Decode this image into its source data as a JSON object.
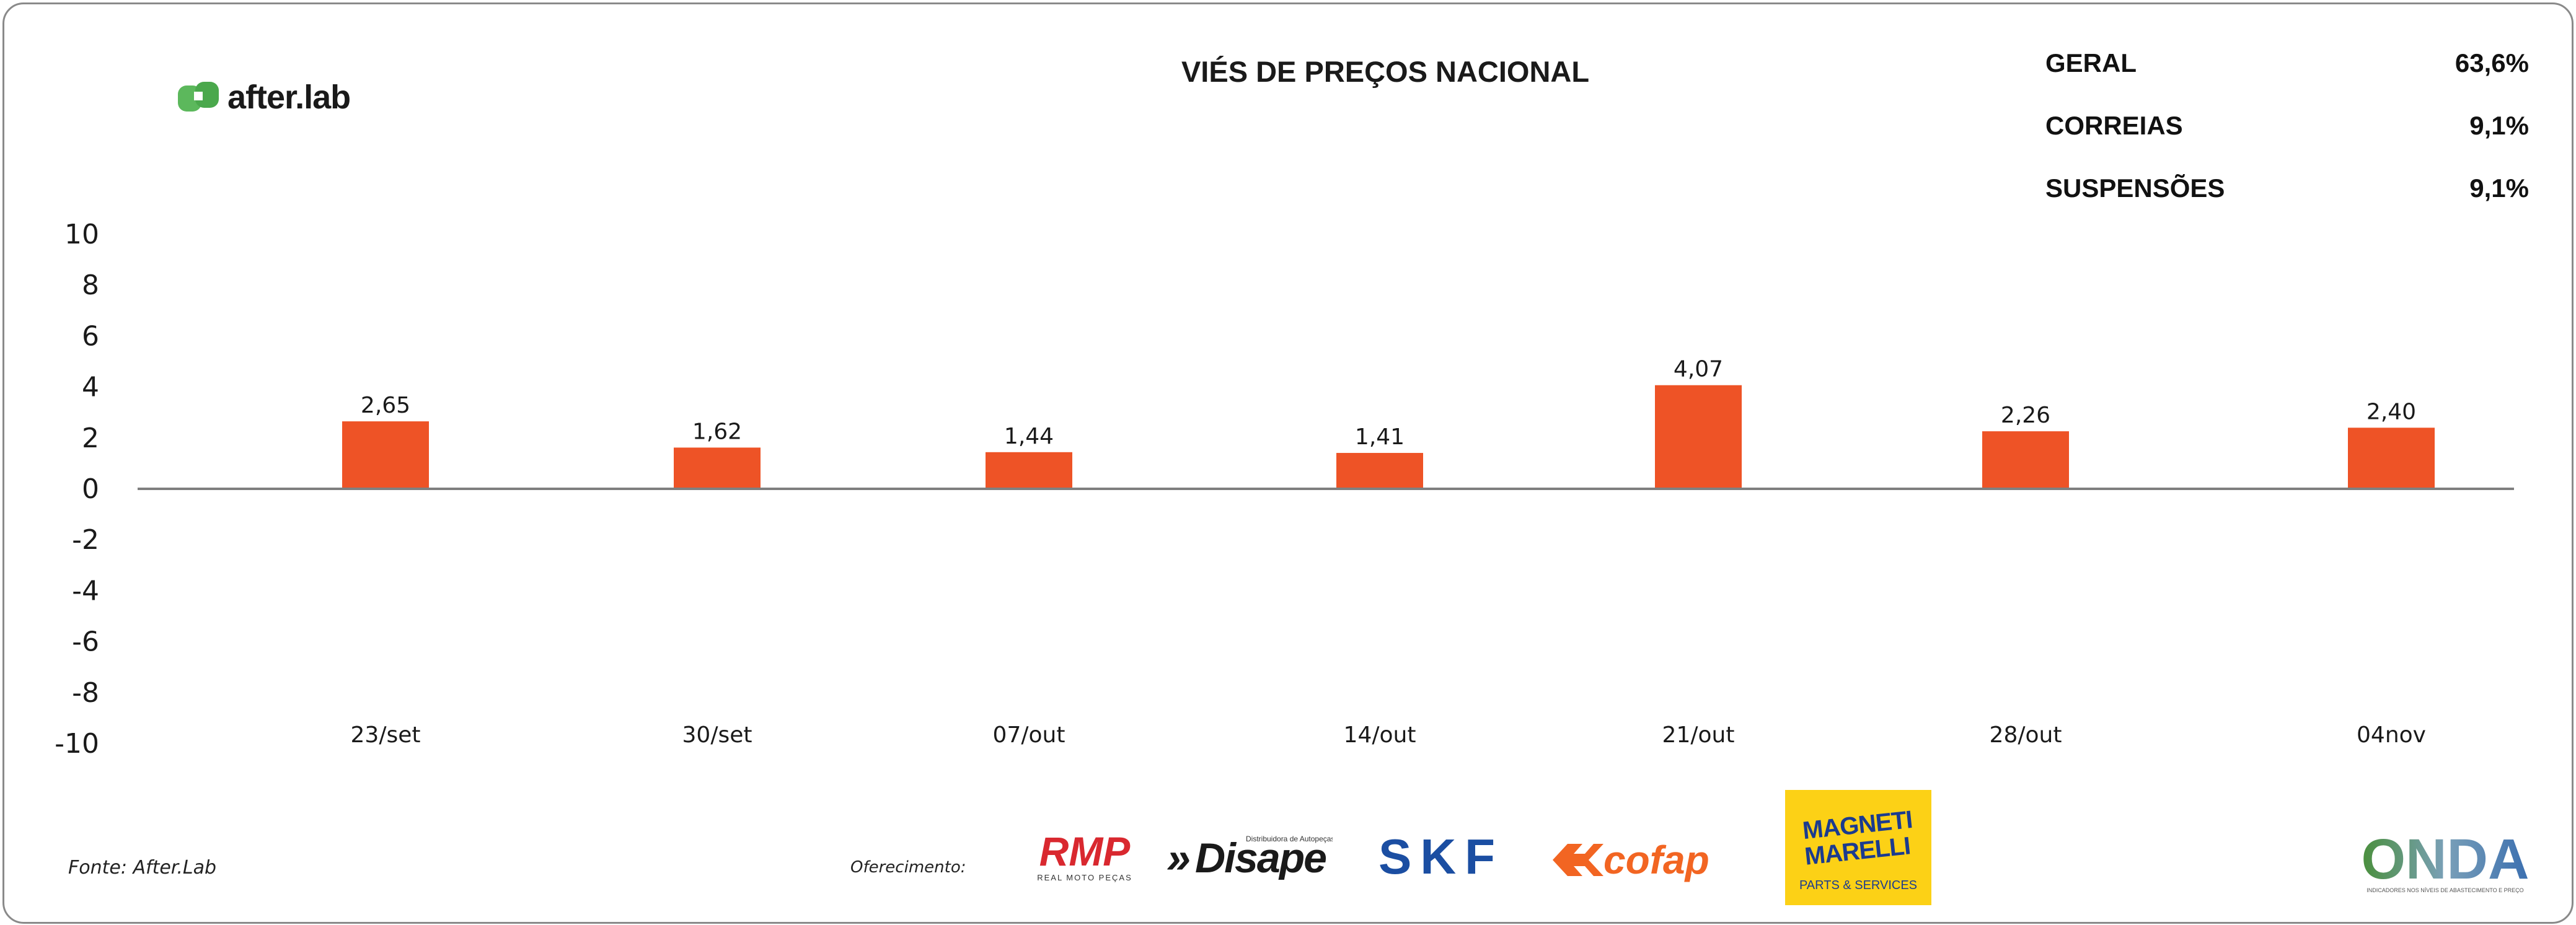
{
  "title": "VIÉS DE PREÇOS NACIONAL",
  "brand": {
    "logo_text": "after.lab",
    "logo_color": "#5cb85c"
  },
  "stats": [
    {
      "label": "GERAL",
      "value": "63,6%"
    },
    {
      "label": "CORREIAS",
      "value": "9,1%"
    },
    {
      "label": "SUSPENSÕES",
      "value": "9,1%"
    }
  ],
  "footer": {
    "source": "Fonte: After.Lab",
    "sponsor_label": "Oferecimento:",
    "sponsors": [
      {
        "name": "RMP",
        "tagline": "REAL MOTO PEÇAS",
        "color": "#d9282f"
      },
      {
        "name": "Disape",
        "tagline": "Distribuidora de Autopeças",
        "color": "#1a1a1a"
      },
      {
        "name": "SKF",
        "color": "#1b4ea2"
      },
      {
        "name": "cofap",
        "color": "#f26522"
      },
      {
        "name": "MAGNETI MARELLI",
        "tagline": "PARTS & SERVICES",
        "color": "#fcd116"
      },
      {
        "name": "ONDA",
        "tagline": "INDICADORES NOS NÍVEIS DE ABASTECIMENTO E PREÇO",
        "color": "#3b6fb0"
      }
    ]
  },
  "chart_data": {
    "type": "bar",
    "categories": [
      "23/set",
      "30/set",
      "07/out",
      "14/out",
      "21/out",
      "28/out",
      "04nov"
    ],
    "values": [
      2.65,
      1.62,
      1.44,
      1.41,
      4.07,
      2.26,
      2.4
    ],
    "value_labels": [
      "2,65",
      "1,62",
      "1,44",
      "1,41",
      "4,07",
      "2,26",
      "2,40"
    ],
    "ylim": [
      -10,
      10
    ],
    "yticks": [
      "10",
      "8",
      "6",
      "4",
      "2",
      "0",
      "-2",
      "-4",
      "-6",
      "-8",
      "-10"
    ],
    "bar_color": "#ee5326",
    "axis_color": "#7f7f7f",
    "grid": false,
    "xlabel": "",
    "ylabel": ""
  }
}
